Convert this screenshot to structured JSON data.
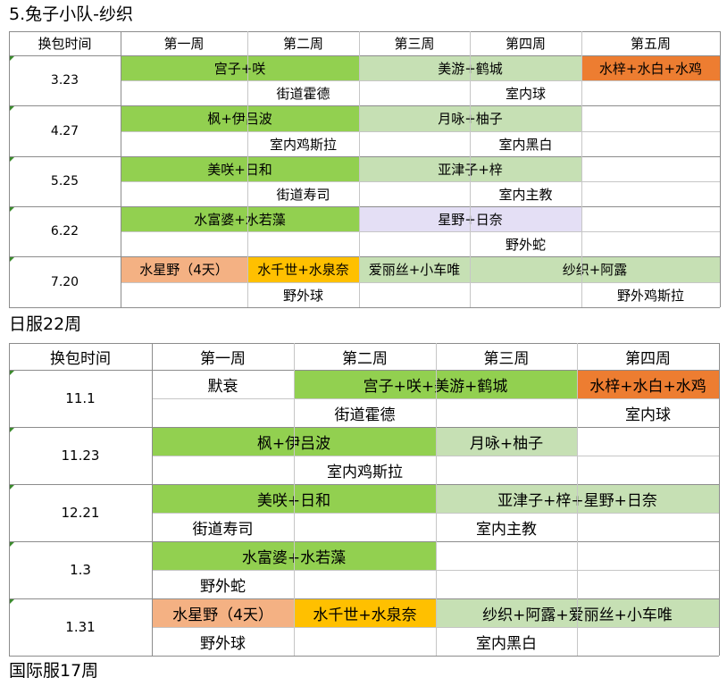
{
  "sections": [
    {
      "title": "5.兔子小队-纱织",
      "header": [
        "换包时间",
        "第一周",
        "第二周",
        "第三周",
        "第四周",
        "第五周"
      ],
      "groups": [
        {
          "date": "3.23",
          "events": [
            {
              "row": 0,
              "start": 1,
              "end": 3,
              "label": "宫子+咲",
              "color": "#92d050"
            },
            {
              "row": 0,
              "start": 3,
              "end": 5,
              "label": "美游+鹤城",
              "color": "#c6e0b4"
            },
            {
              "row": 0,
              "start": 5,
              "end": 6,
              "label": "水梓+水白+水鸡",
              "color": "#ed7d31"
            },
            {
              "row": 1,
              "start": 2,
              "end": 3,
              "label": "街道霍德",
              "color": ""
            },
            {
              "row": 1,
              "start": 4,
              "end": 5,
              "label": "室内球",
              "color": ""
            }
          ]
        },
        {
          "date": "4.27",
          "events": [
            {
              "row": 0,
              "start": 1,
              "end": 3,
              "label": "枫+伊吕波",
              "color": "#92d050"
            },
            {
              "row": 0,
              "start": 3,
              "end": 5,
              "label": "月咏+柚子",
              "color": "#c6e0b4"
            },
            {
              "row": 1,
              "start": 2,
              "end": 3,
              "label": "室内鸡斯拉",
              "color": ""
            },
            {
              "row": 1,
              "start": 4,
              "end": 5,
              "label": "室内黑白",
              "color": ""
            }
          ]
        },
        {
          "date": "5.25",
          "events": [
            {
              "row": 0,
              "start": 1,
              "end": 3,
              "label": "美咲+日和",
              "color": "#92d050"
            },
            {
              "row": 0,
              "start": 3,
              "end": 5,
              "label": "亚津子+梓",
              "color": "#c6e0b4"
            },
            {
              "row": 1,
              "start": 2,
              "end": 3,
              "label": "街道寿司",
              "color": ""
            },
            {
              "row": 1,
              "start": 4,
              "end": 5,
              "label": "室内主教",
              "color": ""
            }
          ]
        },
        {
          "date": "6.22",
          "events": [
            {
              "row": 0,
              "start": 1,
              "end": 3,
              "label": "水富婆+水若藻",
              "color": "#92d050"
            },
            {
              "row": 0,
              "start": 3,
              "end": 5,
              "label": "星野+日奈",
              "color": "#e4dff5"
            },
            {
              "row": 1,
              "start": 4,
              "end": 5,
              "label": "野外蛇",
              "color": ""
            }
          ]
        },
        {
          "date": "7.20",
          "events": [
            {
              "row": 0,
              "start": 1,
              "end": 2,
              "label": "水星野（4天）",
              "color": "#f4b183"
            },
            {
              "row": 0,
              "start": 2,
              "end": 3,
              "label": "水千世+水泉奈",
              "color": "#ffc000"
            },
            {
              "row": 0,
              "start": 3,
              "end": 4,
              "label": "爱丽丝+小车唯",
              "color": "#c6e0b4"
            },
            {
              "row": 0,
              "start": 4,
              "end": 6,
              "label": "纱织+阿露",
              "color": "#c6e0b4"
            },
            {
              "row": 1,
              "start": 2,
              "end": 3,
              "label": "野外球",
              "color": ""
            },
            {
              "row": 1,
              "start": 5,
              "end": 6,
              "label": "野外鸡斯拉",
              "color": ""
            }
          ]
        }
      ]
    },
    {
      "title": "日服22周",
      "header": [
        "换包时间",
        "第一周",
        "第二周",
        "第三周",
        "第四周"
      ],
      "groups": [
        {
          "date": "11.1",
          "events": [
            {
              "row": 0,
              "start": 1,
              "end": 2,
              "label": "默衰",
              "color": ""
            },
            {
              "row": 0,
              "start": 2,
              "end": 4,
              "label": "宫子+咲+美游+鹤城",
              "color": "#92d050"
            },
            {
              "row": 0,
              "start": 4,
              "end": 5,
              "label": "水梓+水白+水鸡",
              "color": "#ed7d31"
            },
            {
              "row": 1,
              "start": 2,
              "end": 3,
              "label": "街道霍德",
              "color": ""
            },
            {
              "row": 1,
              "start": 4,
              "end": 5,
              "label": "室内球",
              "color": ""
            }
          ]
        },
        {
          "date": "11.23",
          "events": [
            {
              "row": 0,
              "start": 1,
              "end": 3,
              "label": "枫+伊吕波",
              "color": "#92d050"
            },
            {
              "row": 0,
              "start": 3,
              "end": 4,
              "label": "月咏+柚子",
              "color": "#c6e0b4"
            },
            {
              "row": 1,
              "start": 2,
              "end": 3,
              "label": "室内鸡斯拉",
              "color": ""
            }
          ]
        },
        {
          "date": "12.21",
          "events": [
            {
              "row": 0,
              "start": 1,
              "end": 3,
              "label": "美咲+日和",
              "color": "#92d050"
            },
            {
              "row": 0,
              "start": 3,
              "end": 5,
              "label": "亚津子+梓+星野+日奈",
              "color": "#c6e0b4"
            },
            {
              "row": 1,
              "start": 1,
              "end": 2,
              "label": "街道寿司",
              "color": ""
            },
            {
              "row": 1,
              "start": 3,
              "end": 4,
              "label": "室内主教",
              "color": ""
            }
          ]
        },
        {
          "date": "1.3",
          "events": [
            {
              "row": 0,
              "start": 1,
              "end": 3,
              "label": "水富婆+水若藻",
              "color": "#92d050"
            },
            {
              "row": 1,
              "start": 1,
              "end": 2,
              "label": "野外蛇",
              "color": ""
            }
          ]
        },
        {
          "date": "1.31",
          "events": [
            {
              "row": 0,
              "start": 1,
              "end": 2,
              "label": "水星野（4天）",
              "color": "#f4b183"
            },
            {
              "row": 0,
              "start": 2,
              "end": 3,
              "label": "水千世+水泉奈",
              "color": "#ffc000"
            },
            {
              "row": 0,
              "start": 3,
              "end": 5,
              "label": "纱织+阿露+爱丽丝+小车唯",
              "color": "#c6e0b4"
            },
            {
              "row": 1,
              "start": 1,
              "end": 2,
              "label": "野外球",
              "color": ""
            },
            {
              "row": 1,
              "start": 3,
              "end": 4,
              "label": "室内黑白",
              "color": ""
            }
          ]
        }
      ]
    }
  ],
  "footer_title": "国际服17周"
}
